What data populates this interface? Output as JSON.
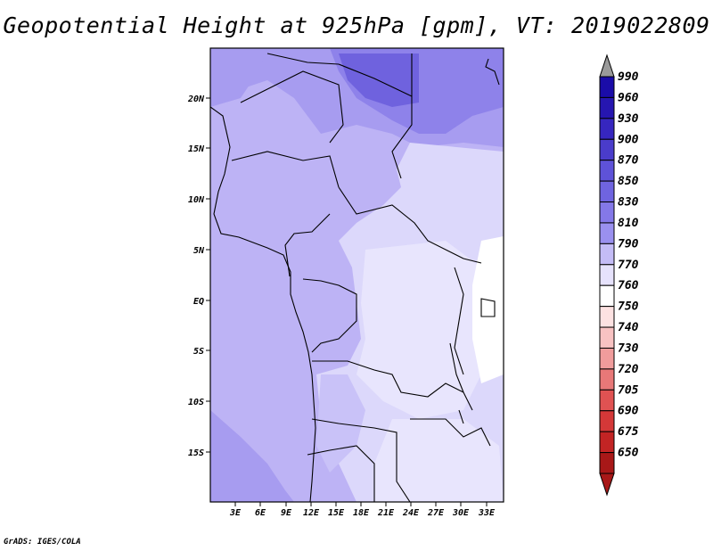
{
  "title": "Geopotential Height at 925hPa [gpm], VT: 2019022809",
  "credit": "GrADS: IGES/COLA",
  "map": {
    "latitude_labels": [
      "20N",
      "15N",
      "10N",
      "5N",
      "EQ",
      "5S",
      "10S",
      "15S"
    ],
    "longitude_labels": [
      "3E",
      "6E",
      "9E",
      "12E",
      "15E",
      "18E",
      "21E",
      "24E",
      "27E",
      "30E",
      "33E"
    ],
    "background_color": "#bdb3f5"
  },
  "colorbar": {
    "levels": [
      "990",
      "960",
      "930",
      "900",
      "870",
      "850",
      "830",
      "810",
      "790",
      "770",
      "760",
      "750",
      "740",
      "730",
      "720",
      "705",
      "690",
      "675",
      "650"
    ],
    "colors": [
      "#1a0ca8",
      "#2616b0",
      "#3626bf",
      "#4a3ccb",
      "#5e52d8",
      "#6f64e0",
      "#8478e8",
      "#9a90ef",
      "#c4bcf6",
      "#e6e2fc",
      "#ffffff",
      "#fde2e2",
      "#f8c2c2",
      "#f09c9c",
      "#e87878",
      "#e05252",
      "#d43838",
      "#c22424",
      "#a81818"
    ],
    "top_arrow_color": "#9a9a9a"
  }
}
